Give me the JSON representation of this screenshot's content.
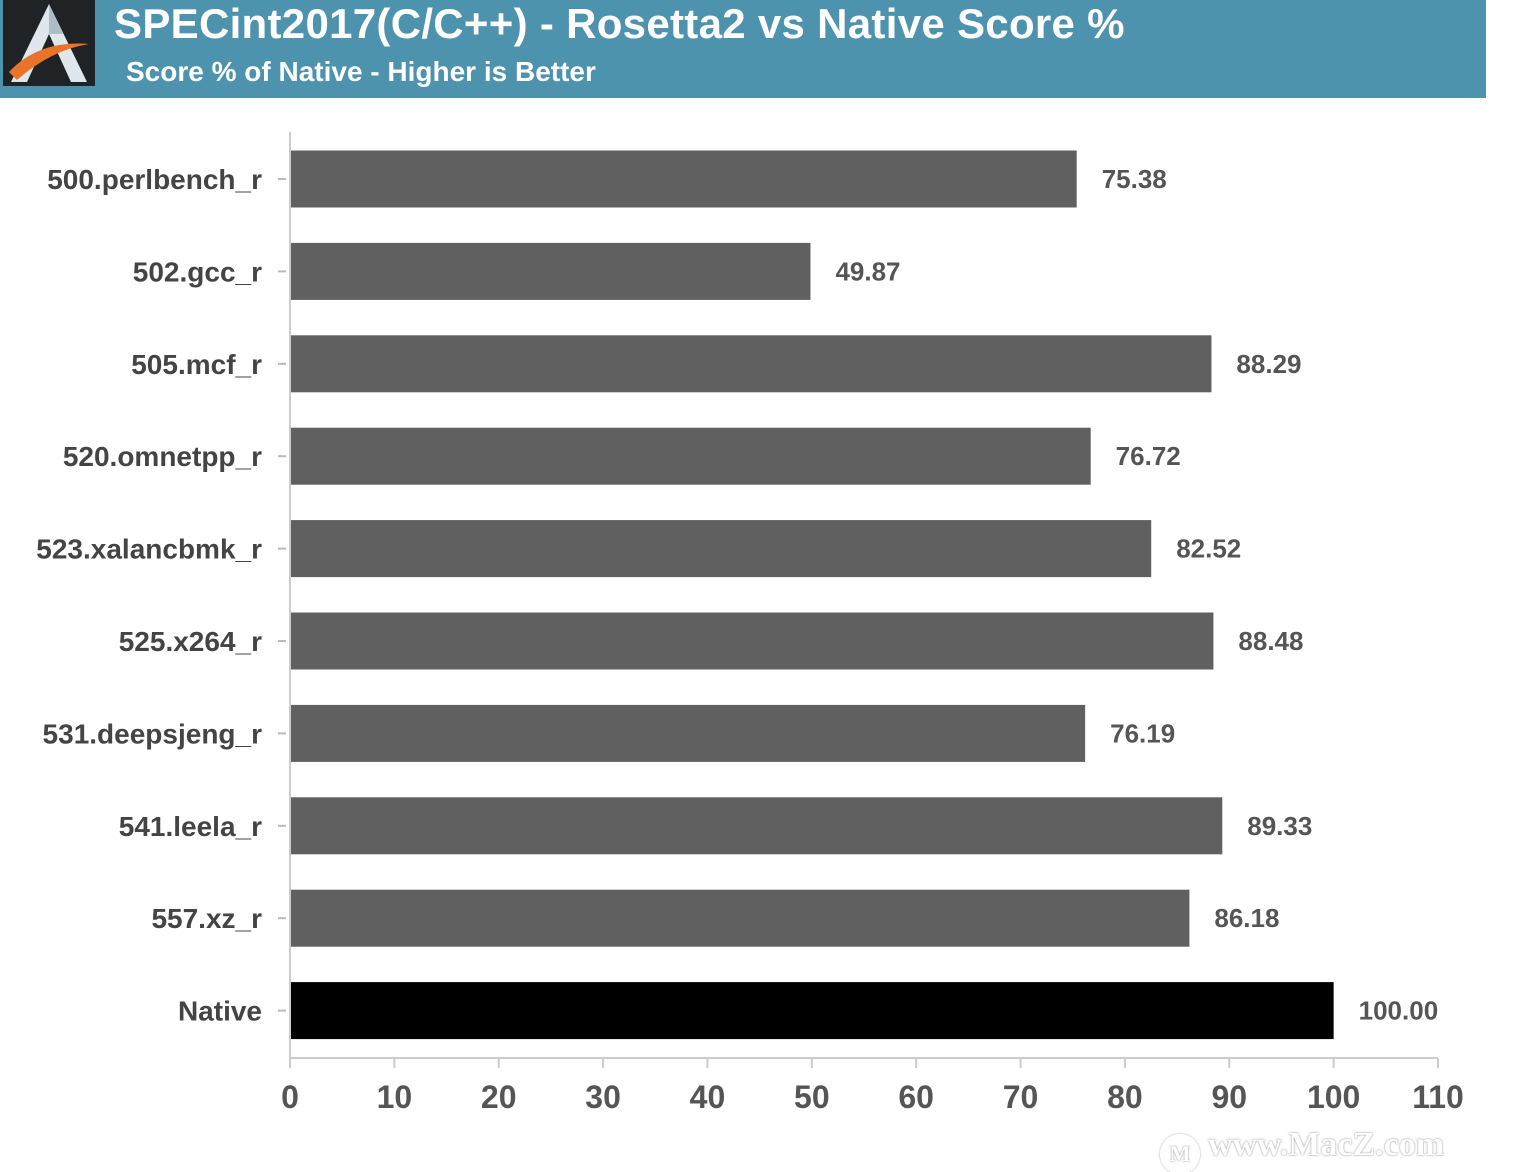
{
  "header": {
    "title": "SPECint2017(C/C++) - Rosetta2 vs Native Score %",
    "subtitle": "Score % of Native - Higher is Better",
    "logo_icon": "anandtech-logo-icon",
    "background_color": "#4d93ad"
  },
  "watermark": {
    "text": "www.MacZ.com",
    "icon": "macz-logo-icon"
  },
  "chart_data": {
    "type": "bar",
    "orientation": "horizontal",
    "title": "SPECint2017(C/C++) - Rosetta2 vs Native Score %",
    "subtitle": "Score % of Native - Higher is Better",
    "xlabel": "",
    "ylabel": "",
    "categories": [
      "500.perlbench_r",
      "502.gcc_r",
      "505.mcf_r",
      "520.omnetpp_r",
      "523.xalancbmk_r",
      "525.x264_r",
      "531.deepsjeng_r",
      "541.leela_r",
      "557.xz_r",
      "Native"
    ],
    "values": [
      75.38,
      49.87,
      88.29,
      76.72,
      82.52,
      88.48,
      76.19,
      89.33,
      86.18,
      100.0
    ],
    "value_labels": [
      "75.38",
      "49.87",
      "88.29",
      "76.72",
      "82.52",
      "88.48",
      "76.19",
      "89.33",
      "86.18",
      "100.00"
    ],
    "bar_colors": [
      "#606060",
      "#606060",
      "#606060",
      "#606060",
      "#606060",
      "#606060",
      "#606060",
      "#606060",
      "#606060",
      "#000000"
    ],
    "xlim": [
      0,
      110
    ],
    "xticks": [
      0,
      10,
      20,
      30,
      40,
      50,
      60,
      70,
      80,
      90,
      100,
      110
    ],
    "grid": false,
    "legend": "none"
  }
}
